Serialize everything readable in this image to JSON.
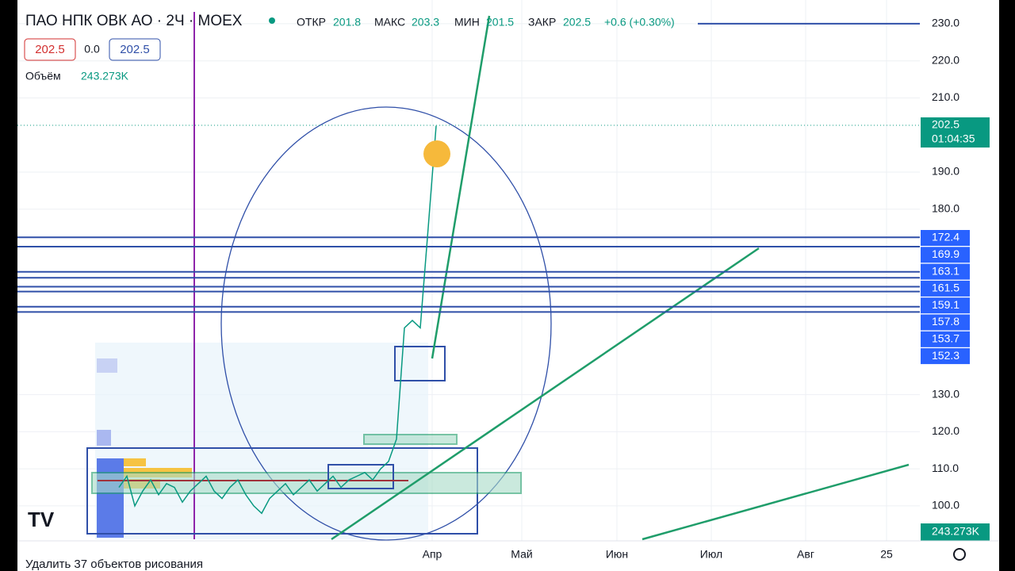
{
  "header": {
    "symbol": "ПАО НПК ОВК АО · 2Ч · MOEX",
    "open_label": "ОТКР",
    "open": 201.8,
    "high_label": "МАКС",
    "high": 203.3,
    "low_label": "МИН",
    "low": 201.5,
    "close_label": "ЗАКР",
    "close": 202.5,
    "change": "+0.6 (+0.30%)",
    "bid": 202.5,
    "spread": "0.0",
    "ask": 202.5,
    "volume_label": "Объём",
    "volume": "243.273K"
  },
  "chart_data": {
    "type": "line",
    "color": "#089981",
    "values": [
      105,
      108,
      100,
      104,
      107,
      103,
      106,
      105,
      101,
      104,
      106,
      108,
      104,
      102,
      105,
      107,
      103,
      100,
      98,
      102,
      104,
      106,
      103,
      105,
      107,
      104,
      106,
      108,
      105,
      107,
      108,
      109,
      107,
      110,
      112,
      118,
      148,
      150,
      148,
      175,
      202.5
    ],
    "ylim": [
      91,
      236.4
    ],
    "yticks": [
      {
        "value": 230,
        "label": "230.0"
      },
      {
        "value": 220,
        "label": "220.0"
      },
      {
        "value": 210,
        "label": "210.0"
      },
      {
        "value": 190,
        "label": "190.0"
      },
      {
        "value": 180,
        "label": "180.0"
      },
      {
        "value": 130,
        "label": "130.0"
      },
      {
        "value": 120,
        "label": "120.0"
      },
      {
        "value": 110,
        "label": "110.0"
      },
      {
        "value": 100,
        "label": "100.0"
      }
    ],
    "levels": [
      172.4,
      169.9,
      163.1,
      161.5,
      159.1,
      157.8,
      153.7,
      152.3
    ],
    "top_level": 230,
    "last_price": 202.5,
    "countdown": "01:04:35",
    "volume_badge": "243.273K",
    "months": [
      "Апр",
      "Май",
      "Июн",
      "Июл",
      "Авг",
      "25"
    ],
    "grid": true
  },
  "footer": {
    "delete_drawings": "Удалить 37 объектов рисования"
  }
}
